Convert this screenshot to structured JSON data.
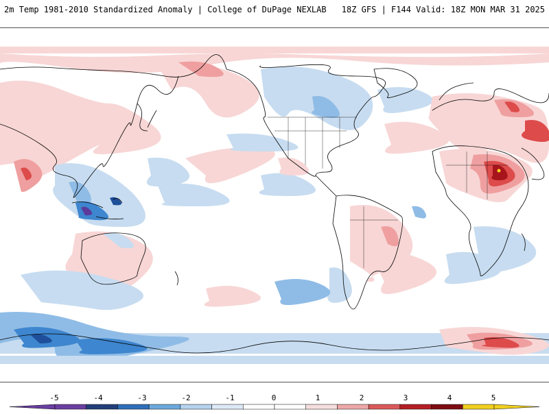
{
  "header": {
    "title": "2m Temp 1981-2010 Standardized Anomaly | College of DuPage NEXLAB",
    "run_info": "18Z GFS | F144 Valid: 18Z MON MAR 31 2025"
  },
  "colorbar": {
    "tick_labels": [
      "-5",
      "-4",
      "-3",
      "-2",
      "-1",
      "0",
      "1",
      "2",
      "3",
      "4",
      "5"
    ],
    "segment_colors": [
      "#6a3fa0",
      "#233f7a",
      "#2f6fb8",
      "#6ea8dc",
      "#b6d3ee",
      "#dde9f6",
      "#ffffff",
      "#ffffff",
      "#f6dede",
      "#eca7a7",
      "#dc5a5a",
      "#b51f24",
      "#7d0d12",
      "#f0d020"
    ],
    "left_arrow_color": "#6a3fa0",
    "right_arrow_color": "#f0d020"
  },
  "colors": {
    "cold_1": "#c7dcf0",
    "cold_2": "#8fbce6",
    "cold_3": "#3e86cf",
    "cold_4": "#1f4f9a",
    "cold_5": "#5b3a9c",
    "warm_1": "#f8d6d6",
    "warm_2": "#ef9f9f",
    "warm_3": "#dd4b4b",
    "warm_4": "#a8141b",
    "warm_5": "#f5d21e",
    "coastline": "#000000"
  }
}
